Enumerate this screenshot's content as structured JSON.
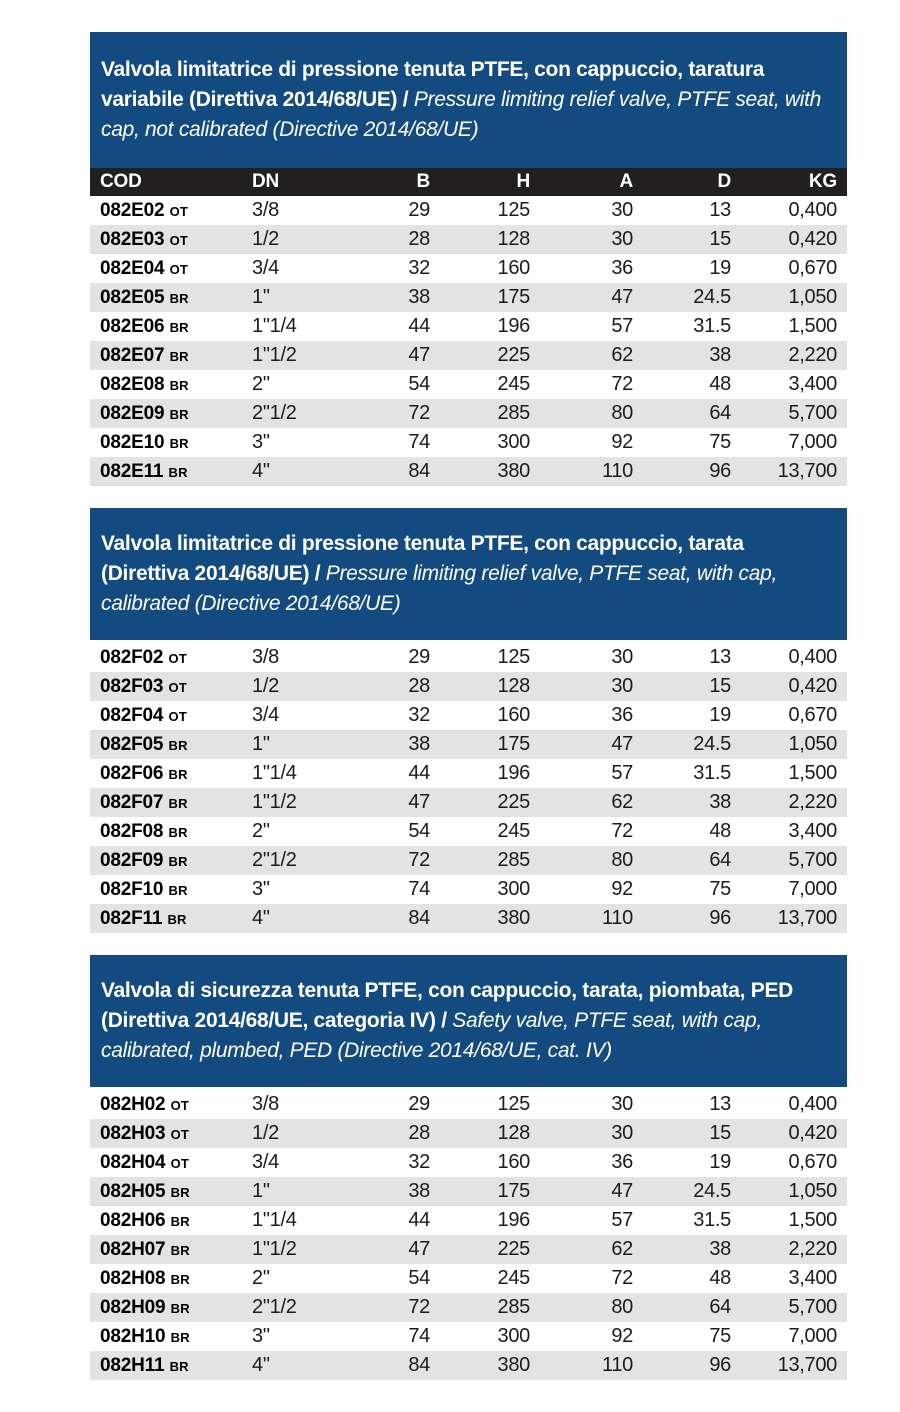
{
  "colors": {
    "banner_blue": "#134a80",
    "table_header_black": "#221f20",
    "row_alt_gray": "#e3e3e3",
    "text_dark": "#1b1b1b"
  },
  "columns": {
    "cod": "COD",
    "dn": "DN",
    "b": "B",
    "h": "H",
    "a": "A",
    "d": "D",
    "kg": "KG"
  },
  "sections": [
    {
      "title_it": "Valvola limitatrice di pressione tenuta PTFE, con cappuccio, taratura variabile (Direttiva 2014/68/UE) / ",
      "title_en": "Pressure limiting relief valve, PTFE seat, with cap, not calibrated (Directive 2014/68/UE)",
      "rows": [
        {
          "cod": "082E02",
          "suffix": "OT",
          "dn": "3/8",
          "b": "29",
          "h": "125",
          "a": "30",
          "d": "13",
          "kg": "0,400"
        },
        {
          "cod": "082E03",
          "suffix": "OT",
          "dn": "1/2",
          "b": "28",
          "h": "128",
          "a": "30",
          "d": "15",
          "kg": "0,420"
        },
        {
          "cod": "082E04",
          "suffix": "OT",
          "dn": "3/4",
          "b": "32",
          "h": "160",
          "a": "36",
          "d": "19",
          "kg": "0,670"
        },
        {
          "cod": "082E05",
          "suffix": "BR",
          "dn": "1\"",
          "b": "38",
          "h": "175",
          "a": "47",
          "d": "24.5",
          "kg": "1,050"
        },
        {
          "cod": "082E06",
          "suffix": "BR",
          "dn": "1\"1/4",
          "b": "44",
          "h": "196",
          "a": "57",
          "d": "31.5",
          "kg": "1,500"
        },
        {
          "cod": "082E07",
          "suffix": "BR",
          "dn": "1\"1/2",
          "b": "47",
          "h": "225",
          "a": "62",
          "d": "38",
          "kg": "2,220"
        },
        {
          "cod": "082E08",
          "suffix": "BR",
          "dn": "2\"",
          "b": "54",
          "h": "245",
          "a": "72",
          "d": "48",
          "kg": "3,400"
        },
        {
          "cod": "082E09",
          "suffix": "BR",
          "dn": "2\"1/2",
          "b": "72",
          "h": "285",
          "a": "80",
          "d": "64",
          "kg": "5,700"
        },
        {
          "cod": "082E10",
          "suffix": "BR",
          "dn": "3\"",
          "b": "74",
          "h": "300",
          "a": "92",
          "d": "75",
          "kg": "7,000"
        },
        {
          "cod": "082E11",
          "suffix": "BR",
          "dn": "4\"",
          "b": "84",
          "h": "380",
          "a": "110",
          "d": "96",
          "kg": "13,700"
        }
      ]
    },
    {
      "title_it": "Valvola limitatrice di pressione tenuta PTFE, con cappuccio, tarata (Direttiva 2014/68/UE) / ",
      "title_en": "Pressure limiting relief valve, PTFE seat, with cap, calibrated (Directive 2014/68/UE)",
      "rows": [
        {
          "cod": "082F02",
          "suffix": "OT",
          "dn": "3/8",
          "b": "29",
          "h": "125",
          "a": "30",
          "d": "13",
          "kg": "0,400"
        },
        {
          "cod": "082F03",
          "suffix": "OT",
          "dn": "1/2",
          "b": "28",
          "h": "128",
          "a": "30",
          "d": "15",
          "kg": "0,420"
        },
        {
          "cod": "082F04",
          "suffix": "OT",
          "dn": "3/4",
          "b": "32",
          "h": "160",
          "a": "36",
          "d": "19",
          "kg": "0,670"
        },
        {
          "cod": "082F05",
          "suffix": "BR",
          "dn": "1\"",
          "b": "38",
          "h": "175",
          "a": "47",
          "d": "24.5",
          "kg": "1,050"
        },
        {
          "cod": "082F06",
          "suffix": "BR",
          "dn": "1\"1/4",
          "b": "44",
          "h": "196",
          "a": "57",
          "d": "31.5",
          "kg": "1,500"
        },
        {
          "cod": "082F07",
          "suffix": "BR",
          "dn": "1\"1/2",
          "b": "47",
          "h": "225",
          "a": "62",
          "d": "38",
          "kg": "2,220"
        },
        {
          "cod": "082F08",
          "suffix": "BR",
          "dn": "2\"",
          "b": "54",
          "h": "245",
          "a": "72",
          "d": "48",
          "kg": "3,400"
        },
        {
          "cod": "082F09",
          "suffix": "BR",
          "dn": "2\"1/2",
          "b": "72",
          "h": "285",
          "a": "80",
          "d": "64",
          "kg": "5,700"
        },
        {
          "cod": "082F10",
          "suffix": "BR",
          "dn": "3\"",
          "b": "74",
          "h": "300",
          "a": "92",
          "d": "75",
          "kg": "7,000"
        },
        {
          "cod": "082F11",
          "suffix": "BR",
          "dn": "4\"",
          "b": "84",
          "h": "380",
          "a": "110",
          "d": "96",
          "kg": "13,700"
        }
      ]
    },
    {
      "title_it": "Valvola di sicurezza tenuta PTFE, con cappuccio, tarata, piombata, PED (Direttiva 2014/68/UE, categoria IV) / ",
      "title_en": "Safety valve, PTFE seat, with cap, calibrated, plumbed, PED (Directive 2014/68/UE, cat. IV)",
      "rows": [
        {
          "cod": "082H02",
          "suffix": "OT",
          "dn": "3/8",
          "b": "29",
          "h": "125",
          "a": "30",
          "d": "13",
          "kg": "0,400"
        },
        {
          "cod": "082H03",
          "suffix": "OT",
          "dn": "1/2",
          "b": "28",
          "h": "128",
          "a": "30",
          "d": "15",
          "kg": "0,420"
        },
        {
          "cod": "082H04",
          "suffix": "OT",
          "dn": "3/4",
          "b": "32",
          "h": "160",
          "a": "36",
          "d": "19",
          "kg": "0,670"
        },
        {
          "cod": "082H05",
          "suffix": "BR",
          "dn": "1\"",
          "b": "38",
          "h": "175",
          "a": "47",
          "d": "24.5",
          "kg": "1,050"
        },
        {
          "cod": "082H06",
          "suffix": "BR",
          "dn": "1\"1/4",
          "b": "44",
          "h": "196",
          "a": "57",
          "d": "31.5",
          "kg": "1,500"
        },
        {
          "cod": "082H07",
          "suffix": "BR",
          "dn": "1\"1/2",
          "b": "47",
          "h": "225",
          "a": "62",
          "d": "38",
          "kg": "2,220"
        },
        {
          "cod": "082H08",
          "suffix": "BR",
          "dn": "2\"",
          "b": "54",
          "h": "245",
          "a": "72",
          "d": "48",
          "kg": "3,400"
        },
        {
          "cod": "082H09",
          "suffix": "BR",
          "dn": "2\"1/2",
          "b": "72",
          "h": "285",
          "a": "80",
          "d": "64",
          "kg": "5,700"
        },
        {
          "cod": "082H10",
          "suffix": "BR",
          "dn": "3\"",
          "b": "74",
          "h": "300",
          "a": "92",
          "d": "75",
          "kg": "7,000"
        },
        {
          "cod": "082H11",
          "suffix": "BR",
          "dn": "4\"",
          "b": "84",
          "h": "380",
          "a": "110",
          "d": "96",
          "kg": "13,700"
        }
      ]
    }
  ]
}
